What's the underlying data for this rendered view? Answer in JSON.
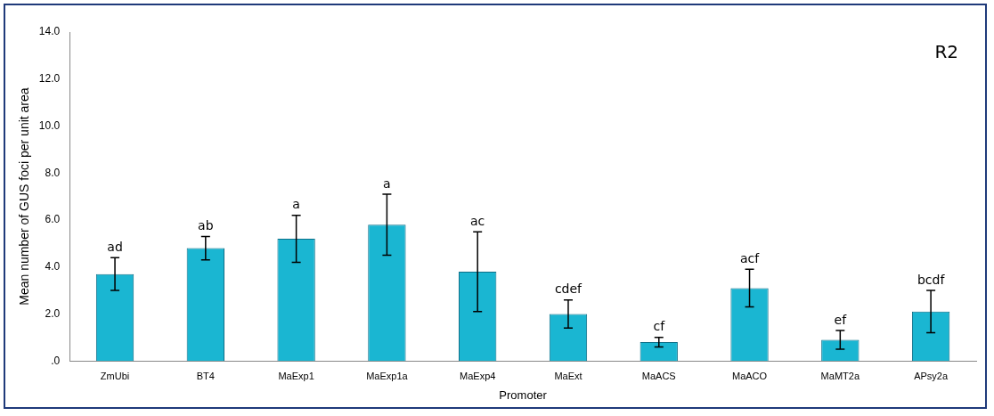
{
  "chart_data": {
    "type": "bar",
    "xlabel": "Promoter",
    "ylabel": "Mean number of GUS foci per unit area",
    "categories": [
      "ZmUbi",
      "BT4",
      "MaExp1",
      "MaExp1a",
      "MaExp4",
      "MaExt",
      "MaACS",
      "MaACO",
      "MaMT2a",
      "APsy2a"
    ],
    "values": [
      3.7,
      4.8,
      5.2,
      5.8,
      3.8,
      2.0,
      0.8,
      3.1,
      0.9,
      2.1
    ],
    "errors": [
      0.7,
      0.5,
      1.0,
      1.3,
      1.7,
      0.6,
      0.2,
      0.8,
      0.4,
      0.9
    ],
    "color": "#1ab6d2",
    "ylim": [
      0,
      14
    ],
    "yticks": [
      {
        "value": 0,
        "label": ".0"
      },
      {
        "value": 2,
        "label": "2.0"
      },
      {
        "value": 4,
        "label": "4.0"
      },
      {
        "value": 6,
        "label": "6.0"
      },
      {
        "value": 8,
        "label": "8.0"
      },
      {
        "value": 10,
        "label": "10.0"
      },
      {
        "value": 12,
        "label": "12.0"
      },
      {
        "value": 14,
        "label": "14.0"
      }
    ],
    "grid": false,
    "legend": false,
    "annotations": [
      {
        "text": "ad",
        "x": "ZmUbi",
        "y": 4.4
      },
      {
        "text": "ab",
        "x": "BT4",
        "y": 5.3
      },
      {
        "text": "a",
        "x": "MaExp1",
        "y": 6.2
      },
      {
        "text": "a",
        "x": "MaExp1a",
        "y": 7.1
      },
      {
        "text": "ac",
        "x": "MaExp4",
        "y": 5.5
      },
      {
        "text": "cdef",
        "x": "MaExt",
        "y": 2.6
      },
      {
        "text": "cf",
        "x": "MaACS",
        "y": 1.0
      },
      {
        "text": "acf",
        "x": "MaACO",
        "y": 3.9
      },
      {
        "text": "ef",
        "x": "MaMT2a",
        "y": 1.3
      },
      {
        "text": "bcdf",
        "x": "APsy2a",
        "y": 3.0
      },
      "R2"
    ]
  }
}
